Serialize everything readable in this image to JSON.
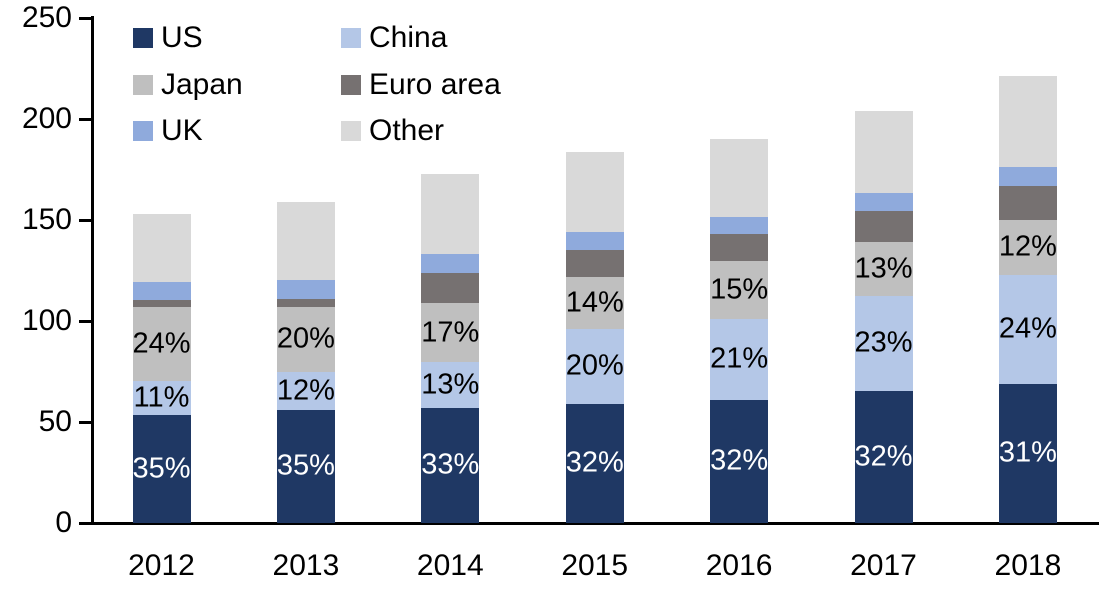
{
  "chart_data": {
    "type": "bar",
    "stacked": true,
    "title": "",
    "xlabel": "",
    "ylabel": "",
    "categories": [
      "2012",
      "2013",
      "2014",
      "2015",
      "2016",
      "2017",
      "2018"
    ],
    "ylim": [
      0,
      250
    ],
    "yticks": [
      0,
      50,
      100,
      150,
      200,
      250
    ],
    "grid": false,
    "legend_position": "top-left, two columns",
    "totals_approx": [
      153,
      159,
      173,
      184,
      190,
      204,
      222
    ],
    "series": [
      {
        "name": "US",
        "color": "#1F3864",
        "label_color": "#FFFFFF",
        "values": [
          53.5,
          56,
          57,
          59,
          61,
          65.5,
          69
        ],
        "labels": [
          "35%",
          "35%",
          "33%",
          "32%",
          "32%",
          "32%",
          "31%"
        ]
      },
      {
        "name": "China",
        "color": "#B4C7E7",
        "label_color": "#000000",
        "values": [
          17,
          19,
          22.5,
          37,
          40,
          47,
          54
        ],
        "labels": [
          "11%",
          "12%",
          "13%",
          "20%",
          "21%",
          "23%",
          "24%"
        ]
      },
      {
        "name": "Japan",
        "color": "#BFBFBF",
        "label_color": "#000000",
        "values": [
          36.5,
          32,
          29.5,
          26,
          28.5,
          26.5,
          27
        ],
        "labels": [
          "24%",
          "20%",
          "17%",
          "14%",
          "15%",
          "13%",
          "12%"
        ]
      },
      {
        "name": "Euro area",
        "color": "#767171",
        "label_color": "#000000",
        "values": [
          3.5,
          4,
          15,
          13,
          13.5,
          15.5,
          17
        ],
        "labels": null
      },
      {
        "name": "UK",
        "color": "#8FAADC",
        "label_color": "#000000",
        "values": [
          9,
          9.5,
          9,
          9,
          8.5,
          9,
          9.5
        ],
        "labels": null
      },
      {
        "name": "Other",
        "color": "#D9D9D9",
        "label_color": "#000000",
        "values": [
          33.5,
          38.5,
          40,
          39.5,
          38.5,
          40.5,
          45
        ],
        "labels": null
      }
    ],
    "legend_order_pairs": [
      [
        "US",
        "China"
      ],
      [
        "Japan",
        "Euro area"
      ],
      [
        "UK",
        "Other"
      ]
    ]
  }
}
